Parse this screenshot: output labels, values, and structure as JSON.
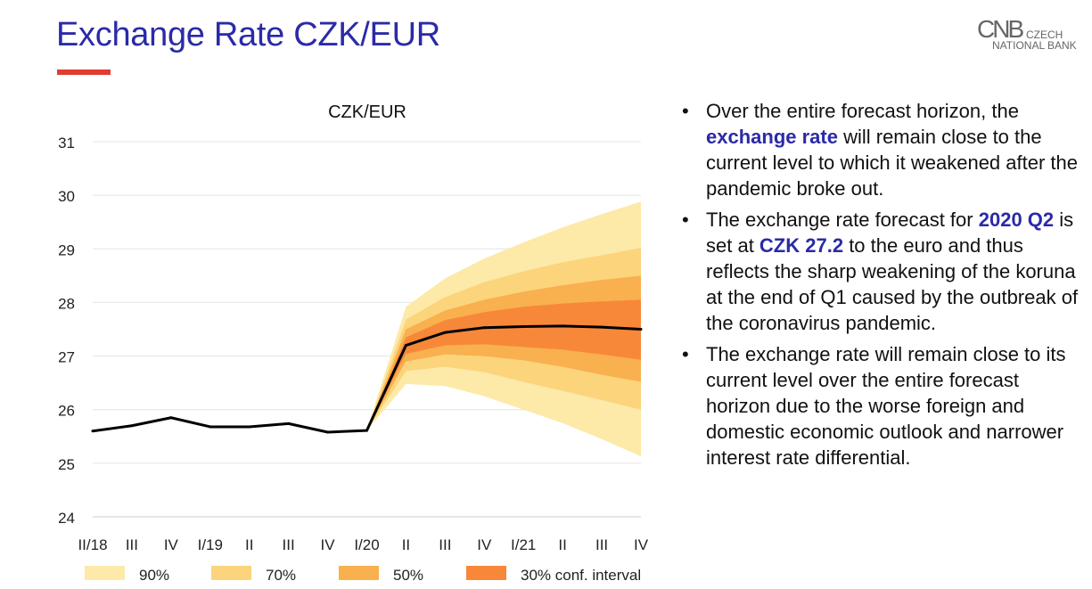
{
  "page": {
    "title": "Exchange Rate CZK/EUR",
    "logo": {
      "mark": "CNB",
      "line1": "CZECH",
      "line2": "NATIONAL BANK"
    },
    "accent_color": "#e03c31",
    "title_color": "#2a2aa8"
  },
  "bullets": [
    {
      "parts": [
        {
          "text": "Over the entire forecast horizon, the ",
          "highlight": false
        },
        {
          "text": "exchange rate",
          "highlight": true
        },
        {
          "text": " will remain close to the current level to which it weakened after the pandemic broke out.",
          "highlight": false
        }
      ]
    },
    {
      "parts": [
        {
          "text": "The exchange rate forecast for ",
          "highlight": false
        },
        {
          "text": "2020 Q2",
          "highlight": true
        },
        {
          "text": " is set at ",
          "highlight": false
        },
        {
          "text": "CZK 27.2",
          "highlight": true
        },
        {
          "text": " to the euro and thus reflects the sharp weakening of the koruna at the end of Q1 caused by the outbreak of the coronavirus pandemic.",
          "highlight": false
        }
      ]
    },
    {
      "parts": [
        {
          "text": "The exchange rate will remain close to its current level over the entire forecast horizon due to the worse foreign and domestic economic outlook and narrower interest rate differential.",
          "highlight": false
        }
      ]
    }
  ],
  "chart_data": {
    "type": "area",
    "title": "CZK/EUR",
    "xlabel": "",
    "ylabel": "",
    "categories": [
      "II/18",
      "III",
      "IV",
      "I/19",
      "II",
      "III",
      "IV",
      "I/20",
      "II",
      "III",
      "IV",
      "I/21",
      "II",
      "III",
      "IV"
    ],
    "ylim": [
      24,
      31
    ],
    "yticks": [
      24,
      25,
      26,
      27,
      28,
      29,
      30,
      31
    ],
    "grid": true,
    "line_color": "#000000",
    "forecast_start_index": 7,
    "series": [
      {
        "values": [
          25.6,
          25.7,
          25.85,
          25.68,
          25.68,
          25.74,
          25.58,
          25.61,
          27.2,
          27.44,
          27.53,
          27.55,
          27.56,
          27.54,
          27.5
        ]
      }
    ],
    "fan_bands": [
      {
        "name": "90%",
        "color": "#fde9a8",
        "lower": [
          null,
          null,
          null,
          null,
          null,
          null,
          null,
          25.61,
          26.48,
          26.44,
          26.25,
          26.0,
          25.75,
          25.45,
          25.13
        ],
        "upper": [
          null,
          null,
          null,
          null,
          null,
          null,
          null,
          25.61,
          27.92,
          28.45,
          28.82,
          29.12,
          29.4,
          29.65,
          29.88
        ]
      },
      {
        "name": "70%",
        "color": "#fbd47c",
        "lower": [
          null,
          null,
          null,
          null,
          null,
          null,
          null,
          25.61,
          26.72,
          26.8,
          26.7,
          26.52,
          26.35,
          26.18,
          26.0
        ],
        "upper": [
          null,
          null,
          null,
          null,
          null,
          null,
          null,
          25.61,
          27.68,
          28.1,
          28.38,
          28.58,
          28.75,
          28.88,
          29.02
        ]
      },
      {
        "name": "50%",
        "color": "#f9b04e",
        "lower": [
          null,
          null,
          null,
          null,
          null,
          null,
          null,
          25.61,
          26.9,
          27.03,
          27.0,
          26.92,
          26.8,
          26.65,
          26.52
        ],
        "upper": [
          null,
          null,
          null,
          null,
          null,
          null,
          null,
          25.61,
          27.5,
          27.85,
          28.05,
          28.2,
          28.32,
          28.42,
          28.5
        ]
      },
      {
        "name": "30% conf. interval",
        "color": "#f7883a",
        "lower": [
          null,
          null,
          null,
          null,
          null,
          null,
          null,
          25.61,
          27.04,
          27.2,
          27.22,
          27.17,
          27.12,
          27.03,
          26.93
        ],
        "upper": [
          null,
          null,
          null,
          null,
          null,
          null,
          null,
          25.61,
          27.35,
          27.67,
          27.82,
          27.92,
          27.98,
          28.02,
          28.05
        ]
      }
    ],
    "legend": {
      "placement": "bottom",
      "entries": [
        {
          "label": "90%",
          "color": "#fde9a8"
        },
        {
          "label": "70%",
          "color": "#fbd47c"
        },
        {
          "label": "50%",
          "color": "#f9b04e"
        },
        {
          "label": "30% conf. interval",
          "color": "#f7883a"
        }
      ]
    }
  }
}
